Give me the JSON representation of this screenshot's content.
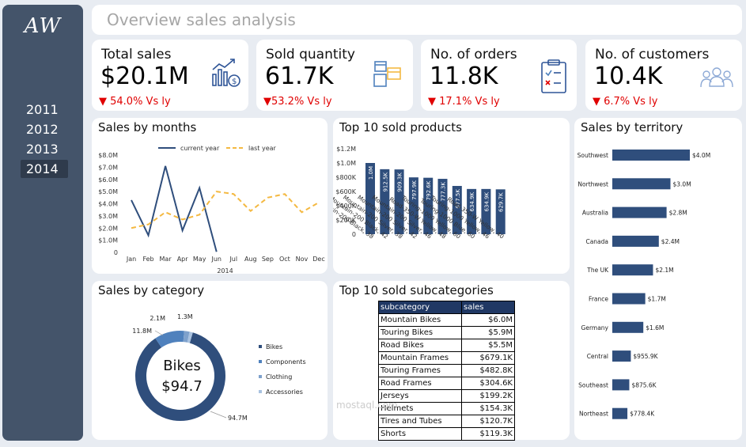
{
  "logo": "AW",
  "years": [
    "2011",
    "2012",
    "2013",
    "2014"
  ],
  "active_year": "2014",
  "title": "Overview sales analysis",
  "kpis": [
    {
      "title": "Total sales",
      "value": "$20.1M",
      "change": "▼ 54.0% Vs ly",
      "icon": "sales-chart-icon"
    },
    {
      "title": "Sold quantity",
      "value": "61.7K",
      "change": "▼53.2% Vs ly",
      "icon": "boxes-icon"
    },
    {
      "title": "No. of orders",
      "value": "11.8K",
      "change": "▼ 17.1% Vs ly",
      "icon": "clipboard-icon"
    },
    {
      "title": "No. of customers",
      "value": "10.4K",
      "change": "▼ 6.7% Vs ly",
      "icon": "customers-icon"
    }
  ],
  "colors": {
    "navy": "#2f4e7c",
    "orange": "#f4b942",
    "red": "#e00000",
    "sidebar": "#44546a",
    "header": "#203864",
    "cat_blue": "#4f81bd"
  },
  "panels": {
    "months": "Sales by months",
    "products": "Top 10 sold products",
    "territory": "Sales by territory",
    "category": "Sales by category",
    "subcategories": "Top 10 sold subcategories"
  },
  "chart_data": [
    {
      "type": "line",
      "title": "Sales by months",
      "x": [
        "Jan",
        "Feb",
        "Mar",
        "Apr",
        "May",
        "Jun",
        "Jul",
        "Aug",
        "Sep",
        "Oct",
        "Nov",
        "Dec"
      ],
      "xlabel": "2014",
      "y_ticks": [
        "0",
        "$1.0M",
        "$2.0M",
        "$3.0M",
        "$4.0M",
        "$5.0M",
        "$6.0M",
        "$7.0M",
        "$8.0M"
      ],
      "ylim": [
        0,
        8
      ],
      "legend_position": "top",
      "series": [
        {
          "name": "current year",
          "values": [
            4.3,
            1.4,
            7.1,
            1.8,
            5.3,
            0.05,
            null,
            null,
            null,
            null,
            null,
            null
          ],
          "color": "#2f4e7c"
        },
        {
          "name": "last year",
          "values": [
            2.0,
            2.3,
            3.3,
            2.7,
            3.1,
            5.0,
            4.8,
            3.4,
            4.5,
            4.8,
            3.3,
            4.1
          ],
          "color": "#f4b942"
        }
      ]
    },
    {
      "type": "bar",
      "title": "Top 10 sold products",
      "categories": [
        "Mountain-200 Black, 38",
        "Mountain-200 Black, 42",
        "Mountain-200 Silver, 38",
        "Mountain-200 Silver, 42",
        "Mountain-200 Silver, 46",
        "Road-350-W Yellow, 48",
        "Touring-1000 Yellow, 60",
        "Touring-1000 Blue, 60",
        "Touring-1000 Yellow, 46",
        "Road-350-W Yellow, 40"
      ],
      "values": [
        1000,
        912.5,
        909.3,
        797.9,
        792.6,
        777.3,
        677.5,
        634.9,
        634.9,
        629.7
      ],
      "data_labels": [
        "1.0M",
        "912.5K",
        "909.3K",
        "797.9K",
        "792.6K",
        "777.3K",
        "677.5K",
        "634.9K",
        "634.9K",
        "629.7K"
      ],
      "y_ticks": [
        "0",
        "$200K",
        "$400K",
        "$600K",
        "$800K",
        "$1.0M",
        "$1.2M"
      ],
      "ylim": [
        0,
        1200
      ],
      "color": "#2f4e7c"
    },
    {
      "type": "bar",
      "orientation": "horizontal",
      "title": "Sales by territory",
      "categories": [
        "Southwest",
        "Northwest",
        "Australia",
        "Canada",
        "The UK",
        "France",
        "Germany",
        "Central",
        "Southeast",
        "Northeast"
      ],
      "values": [
        4.0,
        3.0,
        2.8,
        2.4,
        2.1,
        1.7,
        1.6,
        0.9559,
        0.8756,
        0.7784
      ],
      "data_labels": [
        "$4.0M",
        "$3.0M",
        "$2.8M",
        "$2.4M",
        "$2.1M",
        "$1.7M",
        "$1.6M",
        "$955.9K",
        "$875.6K",
        "$778.4K"
      ],
      "color": "#2f4e7c"
    },
    {
      "type": "pie",
      "donut": true,
      "title": "Sales by category",
      "center_label": "Bikes",
      "center_value": "$94.7",
      "categories": [
        "Bikes",
        "Components",
        "Clothing",
        "Accessories"
      ],
      "values": [
        94.7,
        11.8,
        2.1,
        1.3
      ],
      "data_labels": [
        "94.7M",
        "11.8M",
        "2.1M",
        "1.3M"
      ],
      "colors": [
        "#2f4e7c",
        "#4f81bd",
        "#7ea1cc",
        "#a9c2e0"
      ],
      "legend_position": "right"
    },
    {
      "type": "table",
      "title": "Top 10 sold subcategories",
      "columns": [
        "subcategory",
        "sales"
      ],
      "rows": [
        [
          "Mountain Bikes",
          "$6.0M"
        ],
        [
          "Touring Bikes",
          "$5.9M"
        ],
        [
          "Road Bikes",
          "$5.5M"
        ],
        [
          "Mountain Frames",
          "$679.1K"
        ],
        [
          "Touring Frames",
          "$482.8K"
        ],
        [
          "Road Frames",
          "$304.6K"
        ],
        [
          "Jerseys",
          "$199.2K"
        ],
        [
          "Helmets",
          "$154.3K"
        ],
        [
          "Tires and Tubes",
          "$120.7K"
        ],
        [
          "Shorts",
          "$119.3K"
        ]
      ]
    }
  ],
  "watermark": "mostaql.com"
}
